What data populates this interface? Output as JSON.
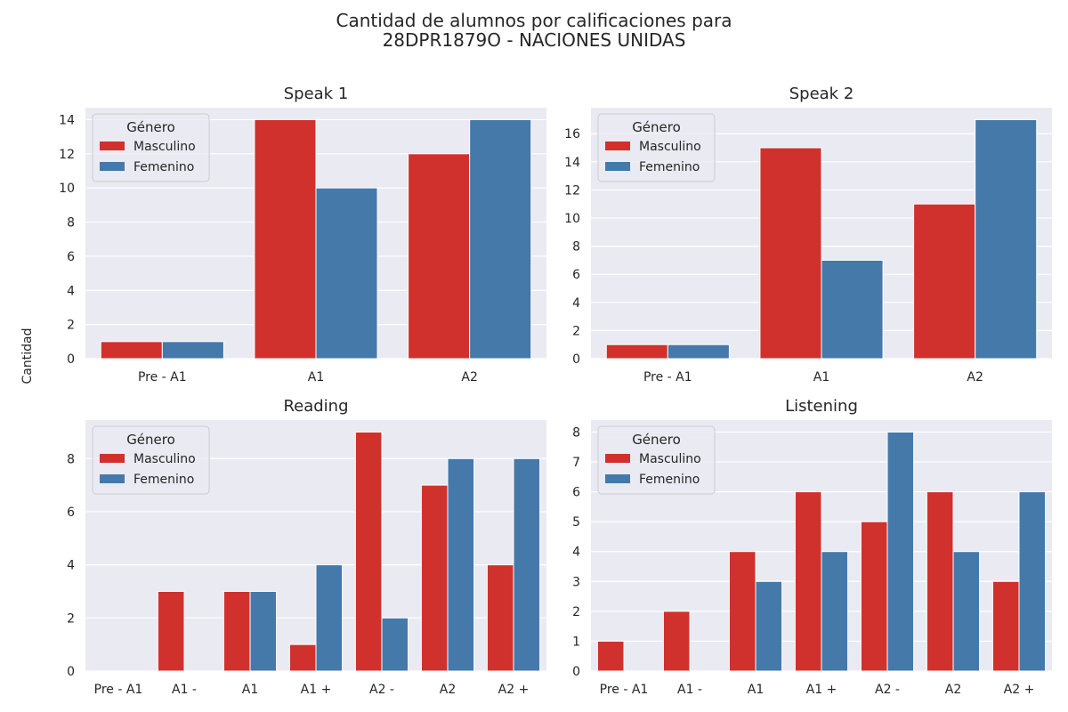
{
  "figure": {
    "title_line1": "Cantidad de alumnos por calificaciones para",
    "title_line2": "28DPR1879O - NACIONES UNIDAS",
    "ylabel": "Cantidad"
  },
  "colors": {
    "Masculino": "#d0312d",
    "Femenino": "#4479aa",
    "panel_bg": "#eaeaf2",
    "grid": "#ffffff"
  },
  "chart_data": [
    {
      "type": "bar",
      "title": "Speak 1",
      "categories": [
        "Pre - A1",
        "A1",
        "A2"
      ],
      "series": [
        {
          "name": "Masculino",
          "values": [
            1,
            14,
            12
          ]
        },
        {
          "name": "Femenino",
          "values": [
            1,
            10,
            14
          ]
        }
      ],
      "ylim": [
        0,
        14.7
      ],
      "yticks": [
        0,
        2,
        4,
        6,
        8,
        10,
        12,
        14
      ],
      "legend": {
        "title": "Género",
        "placement": "upper left"
      },
      "grid": true
    },
    {
      "type": "bar",
      "title": "Speak 2",
      "categories": [
        "Pre - A1",
        "A1",
        "A2"
      ],
      "series": [
        {
          "name": "Masculino",
          "values": [
            1,
            15,
            11
          ]
        },
        {
          "name": "Femenino",
          "values": [
            1,
            7,
            17
          ]
        }
      ],
      "ylim": [
        0,
        17.85
      ],
      "yticks": [
        0,
        2,
        4,
        6,
        8,
        10,
        12,
        14,
        16
      ],
      "legend": {
        "title": "Género",
        "placement": "upper left"
      },
      "grid": true
    },
    {
      "type": "bar",
      "title": "Reading",
      "categories": [
        "Pre - A1",
        "A1 -",
        "A1",
        "A1 +",
        "A2 -",
        "A2",
        "A2 +"
      ],
      "series": [
        {
          "name": "Masculino",
          "values": [
            0,
            3,
            3,
            1,
            9,
            7,
            4
          ]
        },
        {
          "name": "Femenino",
          "values": [
            0,
            0,
            3,
            4,
            2,
            8,
            8
          ]
        }
      ],
      "ylim": [
        0,
        9.45
      ],
      "yticks": [
        0,
        2,
        4,
        6,
        8
      ],
      "legend": {
        "title": "Género",
        "placement": "upper left"
      },
      "grid": true
    },
    {
      "type": "bar",
      "title": "Listening",
      "categories": [
        "Pre - A1",
        "A1 -",
        "A1",
        "A1 +",
        "A2 -",
        "A2",
        "A2 +"
      ],
      "series": [
        {
          "name": "Masculino",
          "values": [
            1,
            2,
            4,
            6,
            5,
            6,
            3
          ]
        },
        {
          "name": "Femenino",
          "values": [
            0,
            0,
            3,
            4,
            8,
            4,
            6
          ]
        }
      ],
      "ylim": [
        0,
        8.4
      ],
      "yticks": [
        0,
        1,
        2,
        3,
        4,
        5,
        6,
        7,
        8
      ],
      "legend": {
        "title": "Género",
        "placement": "upper left"
      },
      "grid": true
    }
  ]
}
